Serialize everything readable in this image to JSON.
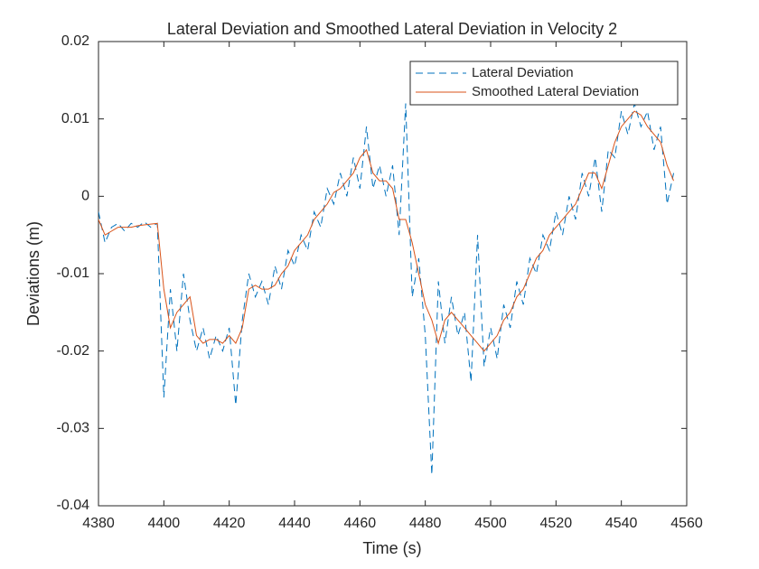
{
  "chart_data": {
    "type": "line",
    "title": "Lateral Deviation and Smoothed Lateral Deviation in Velocity 2",
    "xlabel": "Time (s)",
    "ylabel": "Deviations (m)",
    "x": [
      4380,
      4382,
      4384,
      4386,
      4388,
      4390,
      4392,
      4394,
      4396,
      4398,
      4400,
      4402,
      4404,
      4406,
      4408,
      4410,
      4412,
      4414,
      4416,
      4418,
      4420,
      4422,
      4424,
      4426,
      4428,
      4430,
      4432,
      4434,
      4436,
      4438,
      4440,
      4442,
      4444,
      4446,
      4448,
      4450,
      4452,
      4454,
      4456,
      4458,
      4460,
      4462,
      4464,
      4466,
      4468,
      4470,
      4472,
      4474,
      4476,
      4478,
      4480,
      4482,
      4484,
      4486,
      4488,
      4490,
      4492,
      4494,
      4496,
      4498,
      4500,
      4502,
      4504,
      4506,
      4508,
      4510,
      4512,
      4514,
      4516,
      4518,
      4520,
      4522,
      4524,
      4526,
      4528,
      4530,
      4532,
      4534,
      4536,
      4538,
      4540,
      4542,
      4544,
      4546,
      4548,
      4550,
      4552,
      4554,
      4556
    ],
    "series": [
      {
        "name": "Lateral Deviation",
        "color": "#0072BD",
        "linestyle": "dashed",
        "values": [
          -0.002,
          -0.006,
          -0.004,
          -0.0035,
          -0.0045,
          -0.0035,
          -0.004,
          -0.0033,
          -0.004,
          -0.0035,
          -0.026,
          -0.012,
          -0.02,
          -0.01,
          -0.016,
          -0.02,
          -0.017,
          -0.021,
          -0.018,
          -0.02,
          -0.017,
          -0.027,
          -0.016,
          -0.01,
          -0.013,
          -0.011,
          -0.014,
          -0.009,
          -0.012,
          -0.007,
          -0.009,
          -0.005,
          -0.007,
          -0.002,
          -0.004,
          0.001,
          -0.001,
          0.003,
          0.0,
          0.005,
          0.001,
          0.009,
          0.001,
          0.004,
          0.0,
          0.004,
          -0.005,
          0.012,
          -0.013,
          -0.008,
          -0.018,
          -0.036,
          -0.011,
          -0.019,
          -0.013,
          -0.018,
          -0.015,
          -0.024,
          -0.005,
          -0.022,
          -0.017,
          -0.021,
          -0.014,
          -0.017,
          -0.011,
          -0.014,
          -0.008,
          -0.01,
          -0.005,
          -0.007,
          -0.002,
          -0.005,
          0.0,
          -0.003,
          0.003,
          0.0,
          0.005,
          -0.002,
          0.006,
          0.005,
          0.011,
          0.008,
          0.012,
          0.009,
          0.011,
          0.006,
          0.009,
          -0.001,
          0.003
        ]
      },
      {
        "name": "Smoothed Lateral Deviation",
        "color": "#D95319",
        "linestyle": "solid",
        "values": [
          -0.003,
          -0.005,
          -0.0045,
          -0.004,
          -0.004,
          -0.004,
          -0.0038,
          -0.0037,
          -0.0036,
          -0.0035,
          -0.012,
          -0.017,
          -0.015,
          -0.014,
          -0.013,
          -0.018,
          -0.019,
          -0.0185,
          -0.0185,
          -0.019,
          -0.018,
          -0.019,
          -0.017,
          -0.012,
          -0.0115,
          -0.012,
          -0.012,
          -0.0115,
          -0.01,
          -0.009,
          -0.007,
          -0.006,
          -0.005,
          -0.003,
          -0.002,
          -0.001,
          0.0005,
          0.001,
          0.002,
          0.003,
          0.005,
          0.006,
          0.003,
          0.002,
          0.002,
          0.001,
          -0.003,
          -0.003,
          -0.006,
          -0.01,
          -0.014,
          -0.016,
          -0.019,
          -0.016,
          -0.015,
          -0.016,
          -0.017,
          -0.018,
          -0.019,
          -0.02,
          -0.019,
          -0.018,
          -0.016,
          -0.015,
          -0.013,
          -0.012,
          -0.01,
          -0.008,
          -0.007,
          -0.005,
          -0.004,
          -0.003,
          -0.002,
          -0.001,
          0.001,
          0.003,
          0.003,
          0.001,
          0.004,
          0.007,
          0.009,
          0.01,
          0.011,
          0.0105,
          0.009,
          0.008,
          0.007,
          0.004,
          0.002
        ]
      }
    ],
    "xlim": [
      4380,
      4560
    ],
    "xticks": [
      4380,
      4400,
      4420,
      4440,
      4460,
      4480,
      4500,
      4520,
      4540,
      4560
    ],
    "ylim": [
      -0.04,
      0.02
    ],
    "yticks": [
      -0.04,
      -0.03,
      -0.02,
      -0.01,
      0,
      0.01,
      0.02
    ],
    "grid": false,
    "legend": "northeast"
  }
}
